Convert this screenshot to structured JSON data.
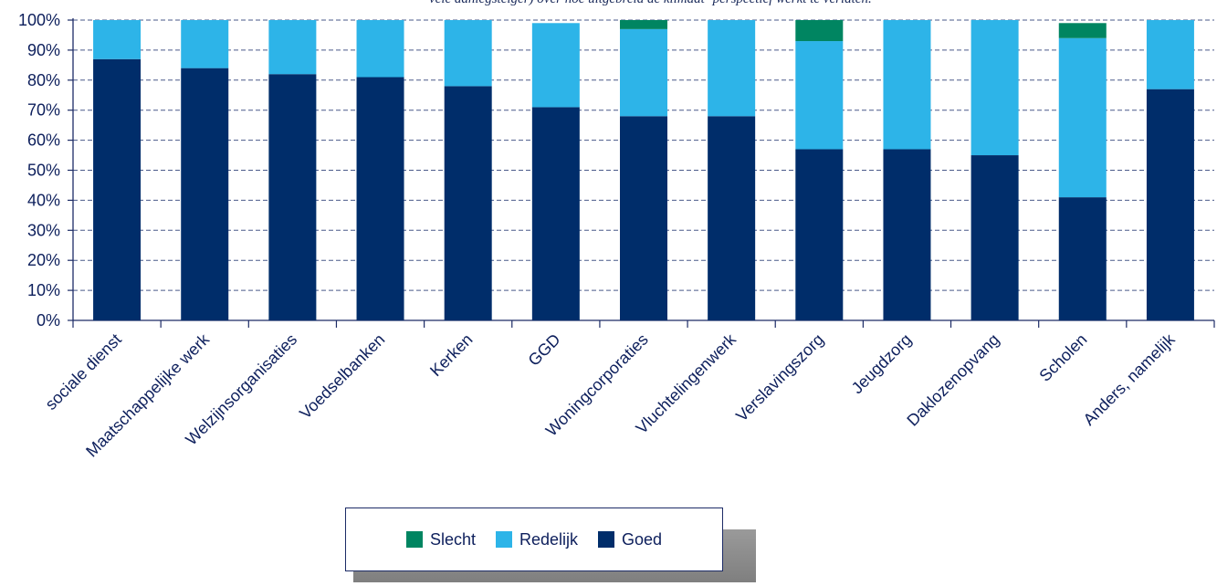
{
  "caption": "vele aanlegsteiger) over hoe uitgebreid  de  klimaat- perspectief werkt te verlaten.",
  "chart_data": {
    "type": "bar",
    "stacked": true,
    "title": "",
    "xlabel": "",
    "ylabel": "",
    "ylim": [
      0,
      100
    ],
    "y_ticks": [
      "0%",
      "10%",
      "20%",
      "30%",
      "40%",
      "50%",
      "60%",
      "70%",
      "80%",
      "90%",
      "100%"
    ],
    "grid": true,
    "legend_position": "bottom",
    "categories": [
      "sociale dienst",
      "Maatschappelijke werk",
      "Welzijnsorganisaties",
      "Voedselbanken",
      "Kerken",
      "GGD",
      "Woningcorporaties",
      "Vluchtelingenwerk",
      "Verslavingszorg",
      "Jeugdzorg",
      "Daklozenopvang",
      "Scholen",
      "Anders, namelijk"
    ],
    "series": [
      {
        "name": "Goed",
        "color": "#002D6A",
        "values": [
          87,
          84,
          82,
          81,
          78,
          71,
          68,
          68,
          57,
          57,
          55,
          41,
          77
        ]
      },
      {
        "name": "Redelijk",
        "color": "#2DB4E8",
        "values": [
          13,
          16,
          18,
          19,
          22,
          28,
          29,
          32,
          36,
          43,
          45,
          53,
          23
        ]
      },
      {
        "name": "Slecht",
        "color": "#008561",
        "values": [
          0,
          0,
          0,
          0,
          0,
          0,
          3,
          0,
          7,
          0,
          0,
          5,
          0
        ]
      }
    ]
  },
  "legend": {
    "items": [
      {
        "label": "Slecht",
        "color": "#008561"
      },
      {
        "label": "Redelijk",
        "color": "#2DB4E8"
      },
      {
        "label": "Goed",
        "color": "#002D6A"
      }
    ]
  }
}
